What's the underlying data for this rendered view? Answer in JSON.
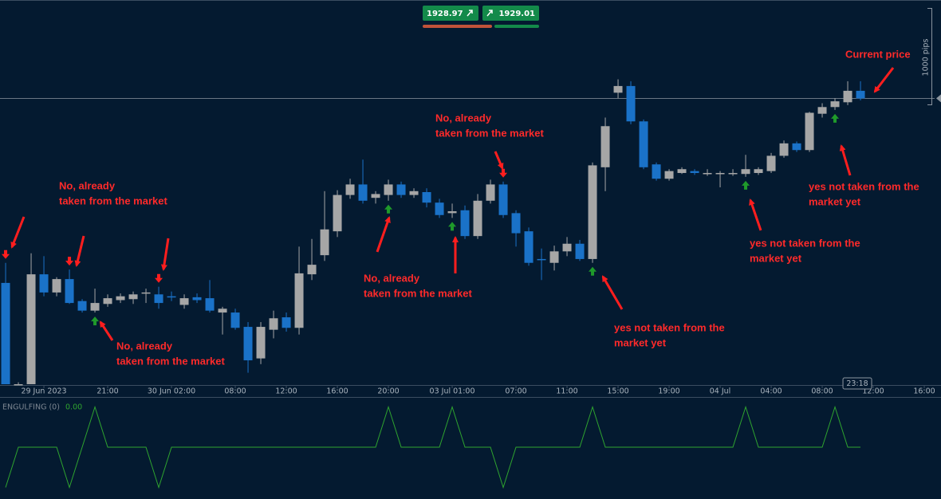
{
  "header": {
    "bid": 1928.97,
    "ask": 1929.01
  },
  "chart_data": {
    "type": "candlestick",
    "up_color": "#a6a6a6",
    "down_color": "#1a72c8",
    "open": [
      1909.7,
      1899.1,
      1899.1,
      1910.6,
      1908.7,
      1910.1,
      1907.8,
      1906.8,
      1907.5,
      1907.9,
      1908.0,
      1908.6,
      1908.5,
      1908.3,
      1907.4,
      1908.2,
      1908.1,
      1906.6,
      1906.6,
      1905.1,
      1901.8,
      1904.8,
      1906.1,
      1905.0,
      1910.6,
      1912.6,
      1915.1,
      1918.9,
      1920.0,
      1918.6,
      1918.9,
      1920.0,
      1918.9,
      1919.2,
      1918.1,
      1917.0,
      1917.3,
      1914.6,
      1918.3,
      1920.0,
      1917.0,
      1915.1,
      1912.2,
      1911.8,
      1913.0,
      1913.8,
      1912.2,
      1921.8,
      1929.6,
      1930.3,
      1926.6,
      1922.1,
      1920.6,
      1921.2,
      1921.4,
      1921.2,
      1921.2,
      1921.2,
      1921.1,
      1921.2,
      1921.4,
      1923.0,
      1924.3,
      1923.6,
      1927.4,
      1928.1,
      1928.6,
      1929.8
    ],
    "high": [
      1911.8,
      1899.3,
      1912.8,
      1912.5,
      1910.3,
      1911.1,
      1908.0,
      1909.1,
      1908.5,
      1908.6,
      1908.8,
      1909.1,
      1909.3,
      1908.8,
      1908.5,
      1908.6,
      1910.0,
      1907.2,
      1907.0,
      1905.6,
      1905.6,
      1906.8,
      1906.6,
      1913.5,
      1914.3,
      1919.3,
      1919.4,
      1920.6,
      1922.6,
      1919.3,
      1920.5,
      1920.3,
      1919.6,
      1919.6,
      1918.5,
      1918.0,
      1917.8,
      1919.0,
      1920.5,
      1920.3,
      1917.3,
      1915.5,
      1913.3,
      1913.6,
      1914.5,
      1914.2,
      1922.3,
      1927.0,
      1931.0,
      1930.8,
      1926.8,
      1922.3,
      1921.6,
      1921.8,
      1921.6,
      1921.6,
      1921.4,
      1921.6,
      1923.1,
      1921.8,
      1923.3,
      1924.6,
      1924.5,
      1927.6,
      1928.5,
      1929.0,
      1930.8,
      1930.8
    ],
    "low": [
      1899.1,
      1899.0,
      1899.1,
      1908.3,
      1908.3,
      1907.5,
      1906.6,
      1906.6,
      1907.2,
      1907.6,
      1907.5,
      1907.6,
      1907.0,
      1907.8,
      1907.0,
      1907.6,
      1906.6,
      1904.3,
      1904.8,
      1900.3,
      1901.2,
      1903.9,
      1904.6,
      1904.3,
      1910.0,
      1912.0,
      1914.5,
      1918.5,
      1918.0,
      1918.0,
      1918.3,
      1918.6,
      1918.6,
      1917.6,
      1916.5,
      1916.5,
      1914.3,
      1914.3,
      1918.0,
      1916.5,
      1913.5,
      1911.5,
      1910.0,
      1911.0,
      1912.5,
      1912.0,
      1911.8,
      1919.3,
      1929.0,
      1926.3,
      1921.6,
      1920.4,
      1920.4,
      1921.1,
      1921.0,
      1920.9,
      1919.7,
      1920.9,
      1920.8,
      1921.0,
      1921.2,
      1922.8,
      1923.4,
      1923.4,
      1927.0,
      1927.8,
      1928.3,
      1928.8
    ],
    "close": [
      1899.1,
      1899.1,
      1910.6,
      1908.7,
      1910.1,
      1907.6,
      1906.8,
      1907.6,
      1908.1,
      1908.3,
      1908.5,
      1908.7,
      1907.6,
      1908.2,
      1908.1,
      1907.9,
      1906.8,
      1907.0,
      1905.0,
      1901.6,
      1905.1,
      1906.0,
      1905.0,
      1910.7,
      1911.6,
      1915.3,
      1918.9,
      1920.0,
      1918.3,
      1919.0,
      1920.0,
      1918.9,
      1919.3,
      1918.1,
      1916.8,
      1917.2,
      1914.6,
      1918.3,
      1920.0,
      1916.8,
      1914.9,
      1911.8,
      1912.1,
      1913.0,
      1913.8,
      1912.2,
      1922.0,
      1926.1,
      1930.3,
      1926.6,
      1921.8,
      1920.6,
      1921.4,
      1921.6,
      1921.2,
      1921.2,
      1921.2,
      1921.2,
      1921.6,
      1921.6,
      1923.0,
      1924.3,
      1923.6,
      1927.5,
      1928.1,
      1928.7,
      1929.8,
      1929.0
    ],
    "xlim": [
      -0.44,
      72.56
    ],
    "ylim": [
      1899.1,
      1939.3
    ],
    "xticks": [
      {
        "value": 3,
        "label": "29 Jun 2023"
      },
      {
        "value": 8,
        "label": "21:00"
      },
      {
        "value": 13,
        "label": "30 Jun 02:00"
      },
      {
        "value": 18,
        "label": "08:00"
      },
      {
        "value": 22,
        "label": "12:00"
      },
      {
        "value": 26,
        "label": "16:00"
      },
      {
        "value": 30,
        "label": "20:00"
      },
      {
        "value": 35,
        "label": "03 Jul 01:00"
      },
      {
        "value": 40,
        "label": "07:00"
      },
      {
        "value": 44,
        "label": "11:00"
      },
      {
        "value": 48,
        "label": "15:00"
      },
      {
        "value": 52,
        "label": "19:00"
      },
      {
        "value": 56,
        "label": "04 Jul"
      },
      {
        "value": 60,
        "label": "04:00"
      },
      {
        "value": 64,
        "label": "08:00"
      },
      {
        "value": 68,
        "label": "12:00"
      },
      {
        "value": 72,
        "label": "16:00"
      }
    ],
    "scale_label": "1000 pips",
    "countdown": "23:18",
    "indicator": {
      "name": "ENGULFING (0)",
      "color": "#2fa42f",
      "last_value": {
        "value": 0,
        "label": "0.00"
      },
      "ylim": [
        -1.05,
        1.05
      ],
      "values": [
        -1,
        0,
        0,
        0,
        0,
        -1,
        0,
        1,
        0,
        0,
        0,
        0,
        -1,
        0,
        0,
        0,
        0,
        0,
        0,
        0,
        0,
        0,
        0,
        0,
        0,
        0,
        0,
        0,
        0,
        0,
        1,
        0,
        0,
        0,
        0,
        1,
        0,
        0,
        0,
        -1,
        0,
        0,
        0,
        0,
        0,
        0,
        1,
        0,
        0,
        0,
        0,
        0,
        0,
        0,
        0,
        0,
        0,
        0,
        1,
        0,
        0,
        0,
        0,
        0,
        0,
        1,
        0,
        0
      ]
    },
    "annotations": [
      {
        "lines": [
          "No, already",
          "taken from the market"
        ]
      },
      {
        "lines": [
          "No, already",
          "taken from the market"
        ]
      },
      {
        "lines": [
          "No, already",
          "taken from the market"
        ]
      },
      {
        "lines": [
          "No, already",
          "taken from the market"
        ]
      },
      {
        "lines": [
          "yes not taken from the",
          "market yet"
        ]
      },
      {
        "lines": [
          "yes not taken from the",
          "market yet"
        ]
      },
      {
        "lines": [
          "yes not taken from the",
          "market yet"
        ]
      },
      {
        "lines": [
          "Current price"
        ]
      }
    ]
  }
}
